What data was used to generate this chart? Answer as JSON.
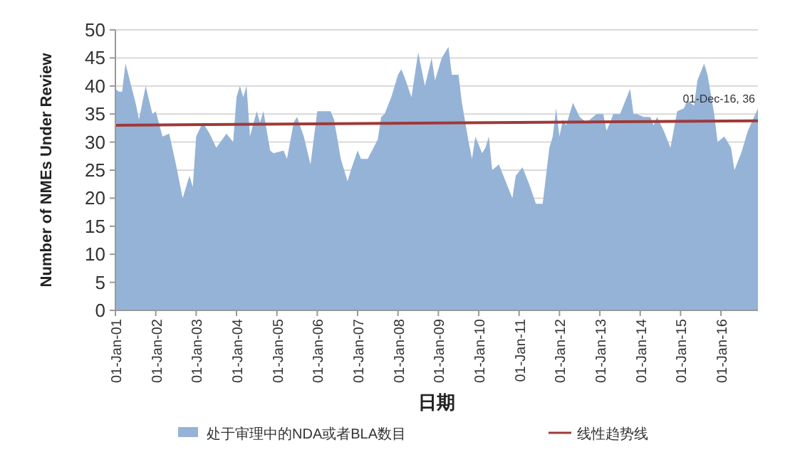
{
  "chart_data": {
    "type": "area",
    "ylabel": "Number of NMEs Under Review",
    "xlabel": "日期",
    "xlim": [
      "2001-01",
      "2016-12"
    ],
    "xticks": [
      {
        "value": "2001-01",
        "label": "01-Jan-01"
      },
      {
        "value": "2002-01",
        "label": "01-Jan-02"
      },
      {
        "value": "2003-01",
        "label": "01-Jan-03"
      },
      {
        "value": "2004-01",
        "label": "01-Jan-04"
      },
      {
        "value": "2005-01",
        "label": "01-Jan-05"
      },
      {
        "value": "2006-01",
        "label": "01-Jan-06"
      },
      {
        "value": "2007-01",
        "label": "01-Jan-07"
      },
      {
        "value": "2008-01",
        "label": "01-Jan-08"
      },
      {
        "value": "2009-01",
        "label": "01-Jan-09"
      },
      {
        "value": "2010-01",
        "label": "01-Jan-10"
      },
      {
        "value": "2011-01",
        "label": "01-Jan-11"
      },
      {
        "value": "2012-01",
        "label": "01-Jan-12"
      },
      {
        "value": "2013-01",
        "label": "01-Jan-13"
      },
      {
        "value": "2014-01",
        "label": "01-Jan-14"
      },
      {
        "value": "2015-01",
        "label": "01-Jan-15"
      },
      {
        "value": "2016-01",
        "label": "01-Jan-16"
      }
    ],
    "ylim": [
      0,
      50
    ],
    "yticks": [
      0,
      5,
      10,
      15,
      20,
      25,
      30,
      35,
      40,
      45,
      50
    ],
    "grid": "y",
    "legend": "bottom",
    "series": [
      {
        "name": "处于审理中的NDA或者BLA数目",
        "color": "#95b3d7",
        "x": [
          "2001-01",
          "2001-02",
          "2001-03",
          "2001-04",
          "2001-07",
          "2001-08",
          "2001-10",
          "2001-12",
          "2002-01",
          "2002-03",
          "2002-05",
          "2002-07",
          "2002-09",
          "2002-11",
          "2002-12",
          "2003-01",
          "2003-03",
          "2003-05",
          "2003-07",
          "2003-10",
          "2003-12",
          "2004-01",
          "2004-02",
          "2004-03",
          "2004-04",
          "2004-05",
          "2004-07",
          "2004-08",
          "2004-09",
          "2004-11",
          "2004-12",
          "2005-03",
          "2005-04",
          "2005-06",
          "2005-07",
          "2005-09",
          "2005-11",
          "2006-01",
          "2006-03",
          "2006-05",
          "2006-06",
          "2006-08",
          "2006-10",
          "2006-11",
          "2007-01",
          "2007-02",
          "2007-04",
          "2007-07",
          "2007-08",
          "2007-09",
          "2007-11",
          "2008-01",
          "2008-02",
          "2008-03",
          "2008-05",
          "2008-07",
          "2008-09",
          "2008-11",
          "2008-12",
          "2009-02",
          "2009-04",
          "2009-05",
          "2009-07",
          "2009-08",
          "2009-10",
          "2009-11",
          "2009-12",
          "2010-02",
          "2010-03",
          "2010-04",
          "2010-05",
          "2010-07",
          "2010-11",
          "2010-12",
          "2011-02",
          "2011-04",
          "2011-06",
          "2011-08",
          "2011-10",
          "2011-11",
          "2011-12",
          "2012-01",
          "2012-02",
          "2012-03",
          "2012-05",
          "2012-07",
          "2012-09",
          "2012-12",
          "2013-02",
          "2013-03",
          "2013-05",
          "2013-07",
          "2013-10",
          "2013-11",
          "2013-12",
          "2014-02",
          "2014-04",
          "2014-05",
          "2014-06",
          "2014-08",
          "2014-10",
          "2014-12",
          "2015-02",
          "2015-03",
          "2015-05",
          "2015-06",
          "2015-08",
          "2015-09",
          "2015-11",
          "2015-12",
          "2016-02",
          "2016-03",
          "2016-04",
          "2016-05",
          "2016-07",
          "2016-09",
          "2016-12"
        ],
        "values": [
          39.5,
          39,
          39,
          44,
          37,
          34,
          40,
          35,
          35.5,
          31,
          31.5,
          26,
          20,
          24,
          22,
          31,
          33.5,
          31.5,
          29,
          31.5,
          30,
          38,
          40,
          38,
          40,
          31,
          35.5,
          33.5,
          35.5,
          28.5,
          28,
          28.5,
          27,
          33.5,
          34.5,
          31,
          26,
          35.5,
          35.5,
          35.5,
          34,
          27,
          23,
          25,
          28.5,
          27,
          27,
          30.5,
          34.5,
          35,
          38,
          42,
          43,
          41.5,
          38,
          46,
          40,
          45,
          41,
          45,
          47,
          42,
          42,
          37,
          30,
          27,
          31,
          28,
          29,
          31,
          25,
          26,
          20,
          24,
          25.5,
          22.5,
          19,
          19,
          29,
          31,
          36,
          31,
          34,
          33,
          37,
          34.5,
          33.5,
          35,
          35,
          32,
          35,
          35,
          39.5,
          35,
          35,
          34.5,
          34.5,
          33,
          34.5,
          32,
          29,
          35.5,
          36,
          37.5,
          36.5,
          41,
          44,
          42,
          35,
          30,
          31,
          30,
          29,
          25,
          28,
          32,
          36
        ]
      },
      {
        "name": "线性趋势线",
        "type": "line",
        "color": "#9e3a3a",
        "x": [
          "2001-01",
          "2016-12"
        ],
        "values": [
          33,
          33.8
        ]
      }
    ],
    "annotations": [
      {
        "text": "01-Dec-16, 36",
        "x": "2016-12",
        "y": 36
      }
    ]
  }
}
